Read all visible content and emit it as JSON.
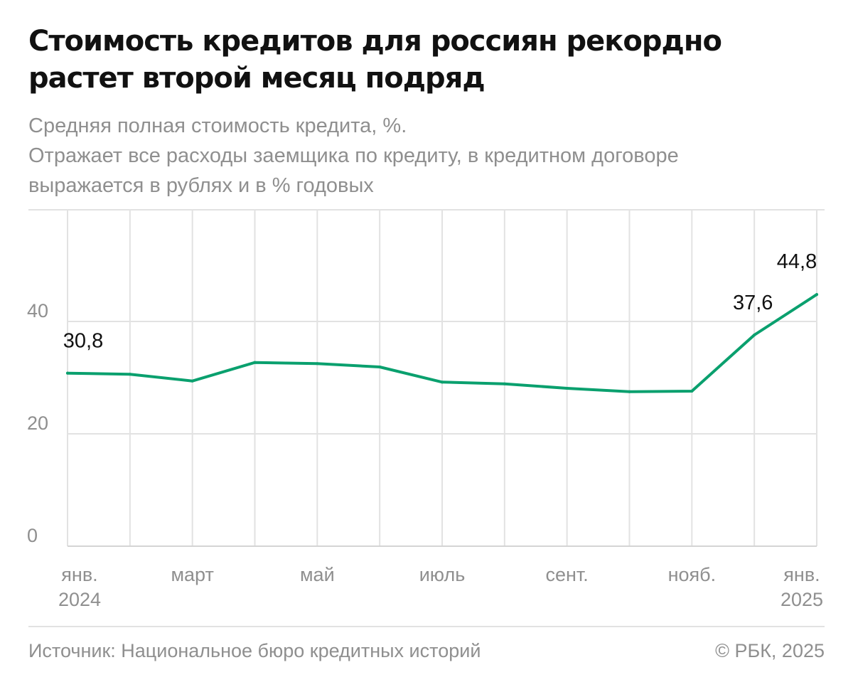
{
  "header": {
    "title": "Стоимость кредитов для россиян рекордно растет второй месяц подряд",
    "subtitle_lines": [
      "Средняя полная стоимость кредита, %.",
      "Отражает все расходы заемщика по кредиту, в кредитном договоре",
      "выражается в рублях и в % годовых"
    ]
  },
  "chart_data": {
    "type": "line",
    "title": "Стоимость кредитов для россиян рекордно растет второй месяц подряд",
    "subtitle": "Средняя полная стоимость кредита, %.",
    "x": [
      "2024-01",
      "2024-02",
      "2024-03",
      "2024-04",
      "2024-05",
      "2024-06",
      "2024-07",
      "2024-08",
      "2024-09",
      "2024-10",
      "2024-11",
      "2024-12",
      "2025-01"
    ],
    "series": [
      {
        "values": [
          30.8,
          30.6,
          29.4,
          32.7,
          32.5,
          31.9,
          29.2,
          28.9,
          28.1,
          27.5,
          27.6,
          37.6,
          44.8
        ]
      }
    ],
    "data_labels": [
      {
        "index": 0,
        "text": "30,8"
      },
      {
        "index": 11,
        "text": "37,6"
      },
      {
        "index": 12,
        "text": "44,8"
      }
    ],
    "x_ticks": [
      {
        "index": 0,
        "lines": [
          "янв.",
          "2024"
        ]
      },
      {
        "index": 2,
        "lines": [
          "март"
        ]
      },
      {
        "index": 4,
        "lines": [
          "май"
        ]
      },
      {
        "index": 6,
        "lines": [
          "июль"
        ]
      },
      {
        "index": 8,
        "lines": [
          "сент."
        ]
      },
      {
        "index": 10,
        "lines": [
          "нояб."
        ]
      },
      {
        "index": 12,
        "lines": [
          "янв.",
          "2025"
        ]
      }
    ],
    "y_ticks": [
      0,
      20,
      40
    ],
    "ylim": [
      0,
      60
    ],
    "grid": true,
    "line_color": "#0aa06e"
  },
  "footer": {
    "source": "Источник: Национальное бюро кредитных историй",
    "copyright": "© РБК, 2025"
  }
}
